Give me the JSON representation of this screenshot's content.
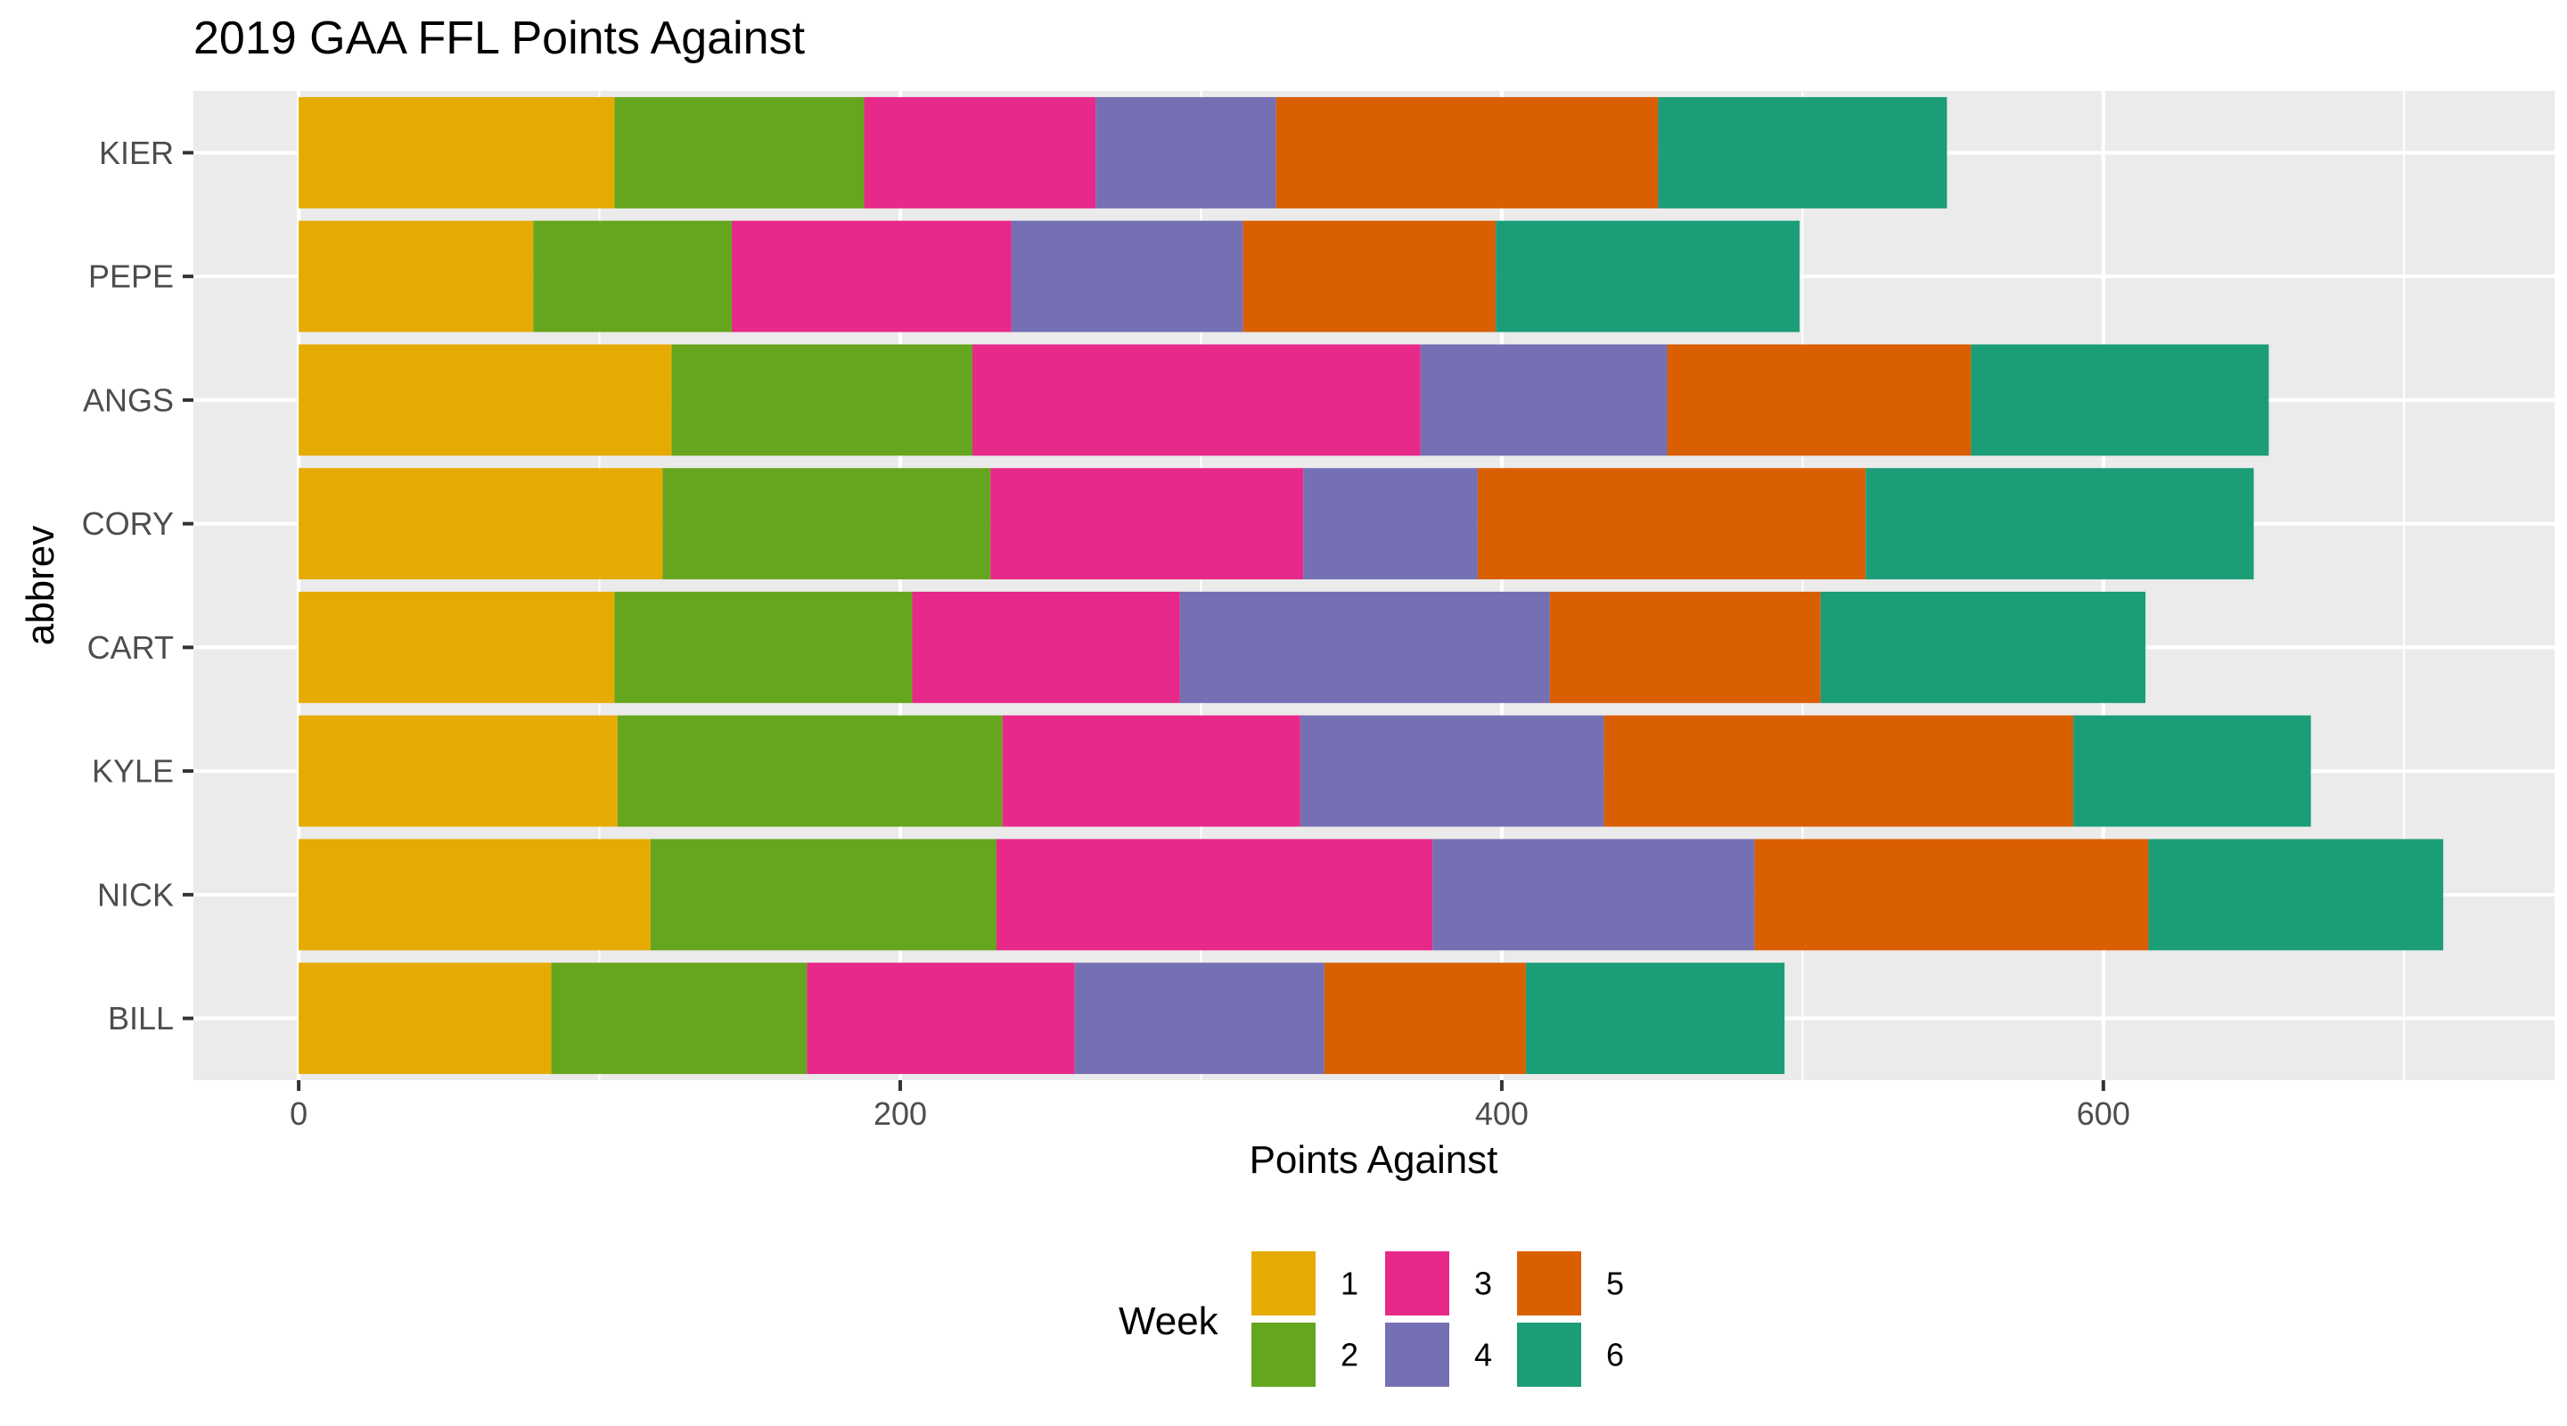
{
  "chart_data": {
    "type": "bar",
    "orientation": "horizontal",
    "stacked": true,
    "title": "2019 GAA FFL Points Against",
    "xlabel": "Points Against",
    "ylabel": "abbrev",
    "xlim": [
      -35,
      750
    ],
    "xticks": [
      0,
      200,
      400,
      600
    ],
    "grid": true,
    "legend_position": "bottom",
    "legend_title": "Week",
    "categories": [
      "KIER",
      "PEPE",
      "ANGS",
      "CORY",
      "CART",
      "KYLE",
      "NICK",
      "BILL"
    ],
    "series": [
      {
        "name": "1",
        "color": "#E6AB02",
        "values": [
          105,
          78,
          124,
          121,
          105,
          106,
          117,
          84
        ]
      },
      {
        "name": "2",
        "color": "#66A61E",
        "values": [
          83,
          66,
          100,
          109,
          99,
          128,
          115,
          85
        ]
      },
      {
        "name": "3",
        "color": "#E7298A",
        "values": [
          77,
          93,
          149,
          104,
          89,
          99,
          145,
          89
        ]
      },
      {
        "name": "4",
        "color": "#7570B3",
        "values": [
          60,
          77,
          82,
          58,
          123,
          101,
          107,
          83
        ]
      },
      {
        "name": "5",
        "color": "#D95F02",
        "values": [
          127,
          84,
          101,
          129,
          90,
          156,
          131,
          67
        ]
      },
      {
        "name": "6",
        "color": "#1B9E77",
        "values": [
          96,
          101,
          99,
          129,
          108,
          79,
          98,
          86
        ]
      }
    ]
  }
}
